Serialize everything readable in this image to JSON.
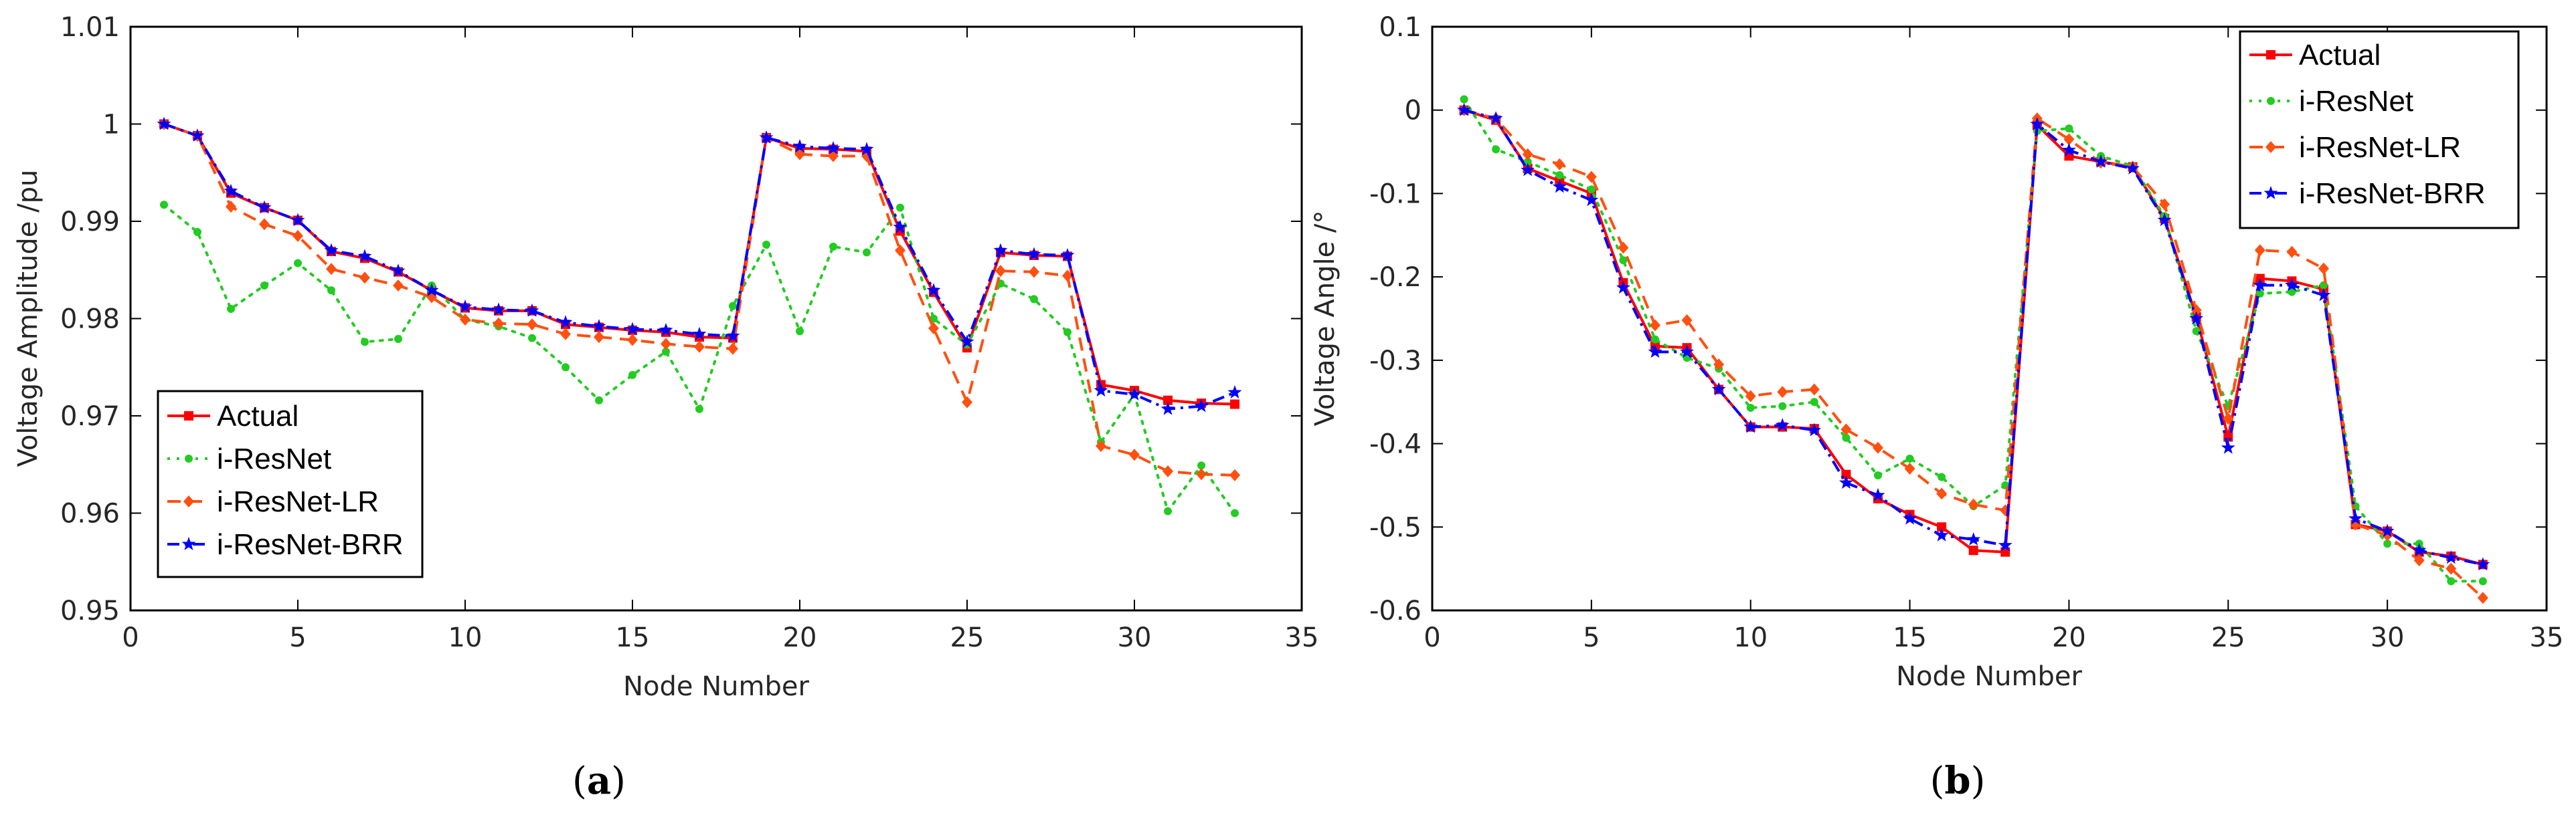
{
  "chart_data": [
    {
      "type": "line",
      "caption": {
        "open": "(",
        "letter": "a",
        "close": ")"
      },
      "title": "",
      "xlabel": "Node Number",
      "ylabel": "Voltage Amplitude /pu",
      "xlim": [
        0,
        35
      ],
      "ylim": [
        0.95,
        1.01
      ],
      "xticks": [
        0,
        5,
        10,
        15,
        20,
        25,
        30,
        35
      ],
      "yticks": [
        0.95,
        0.96,
        0.97,
        0.98,
        0.99,
        1,
        1.01
      ],
      "ytick_labels": [
        "0.95",
        "0.96",
        "0.97",
        "0.98",
        "0.99",
        "1",
        "1.01"
      ],
      "legend_position": "bottom-left",
      "x": [
        1,
        2,
        3,
        4,
        5,
        6,
        7,
        8,
        9,
        10,
        11,
        12,
        13,
        14,
        15,
        16,
        17,
        18,
        19,
        20,
        21,
        22,
        23,
        24,
        25,
        26,
        27,
        28,
        29,
        30,
        31,
        32,
        33
      ],
      "series": [
        {
          "name": "Actual",
          "color": "#ff0000",
          "dash": "",
          "marker": "square",
          "values": [
            1.0,
            0.9988,
            0.9929,
            0.9914,
            0.9901,
            0.9869,
            0.9862,
            0.9848,
            0.9829,
            0.9811,
            0.9808,
            0.9808,
            0.9794,
            0.9791,
            0.9788,
            0.9786,
            0.9781,
            0.978,
            0.9986,
            0.9975,
            0.9974,
            0.9972,
            0.989,
            0.9827,
            0.977,
            0.9868,
            0.9865,
            0.9864,
            0.9732,
            0.9726,
            0.9716,
            0.9713,
            0.9712
          ]
        },
        {
          "name": "i-ResNet",
          "color": "#22cc22",
          "dash": "4,10",
          "marker": "dot",
          "values": [
            0.9917,
            0.9889,
            0.981,
            0.9834,
            0.9857,
            0.9829,
            0.9776,
            0.9779,
            0.9834,
            0.9799,
            0.9792,
            0.978,
            0.975,
            0.9716,
            0.9742,
            0.9766,
            0.9707,
            0.9813,
            0.9876,
            0.9787,
            0.9874,
            0.9868,
            0.9914,
            0.98,
            0.9773,
            0.9836,
            0.982,
            0.9786,
            0.9673,
            0.9722,
            0.9602,
            0.9649,
            0.96
          ]
        },
        {
          "name": "i-ResNet-LR",
          "color": "#ff5010",
          "dash": "20,12",
          "marker": "diamond",
          "values": [
            1.0,
            0.9988,
            0.9915,
            0.9897,
            0.9885,
            0.9851,
            0.9842,
            0.9834,
            0.9822,
            0.9799,
            0.9795,
            0.9794,
            0.9784,
            0.9781,
            0.9778,
            0.9774,
            0.9771,
            0.9769,
            0.9986,
            0.9969,
            0.9967,
            0.9967,
            0.987,
            0.979,
            0.9714,
            0.9849,
            0.9848,
            0.9844,
            0.9669,
            0.966,
            0.9643,
            0.964,
            0.9639
          ]
        },
        {
          "name": "i-ResNet-BRR",
          "color": "#0000ff",
          "dash": "18,8,4,8",
          "marker": "star",
          "values": [
            1.0,
            0.9988,
            0.9931,
            0.9914,
            0.9901,
            0.987,
            0.9864,
            0.9849,
            0.9829,
            0.9812,
            0.9809,
            0.9808,
            0.9796,
            0.9792,
            0.9789,
            0.9788,
            0.9784,
            0.9782,
            0.9986,
            0.9977,
            0.9975,
            0.9974,
            0.9894,
            0.9829,
            0.9776,
            0.987,
            0.9866,
            0.9865,
            0.9726,
            0.9722,
            0.9707,
            0.971,
            0.9724
          ]
        }
      ]
    },
    {
      "type": "line",
      "caption": {
        "open": "(",
        "letter": "b",
        "close": ")"
      },
      "title": "",
      "xlabel": "Node Number",
      "ylabel": "Voltage Angle /°",
      "xlim": [
        0,
        35
      ],
      "ylim": [
        -0.6,
        0.1
      ],
      "xticks": [
        0,
        5,
        10,
        15,
        20,
        25,
        30,
        35
      ],
      "yticks": [
        -0.6,
        -0.5,
        -0.4,
        -0.3,
        -0.2,
        -0.1,
        0,
        0.1
      ],
      "ytick_labels": [
        "-0.6",
        "-0.5",
        "-0.4",
        "-0.3",
        "-0.2",
        "-0.1",
        "0",
        "0.1"
      ],
      "legend_position": "top-right",
      "x": [
        1,
        2,
        3,
        4,
        5,
        6,
        7,
        8,
        9,
        10,
        11,
        12,
        13,
        14,
        15,
        16,
        17,
        18,
        19,
        20,
        21,
        22,
        23,
        24,
        25,
        26,
        27,
        28,
        29,
        30,
        31,
        32,
        33
      ],
      "series": [
        {
          "name": "Actual",
          "color": "#ff0000",
          "dash": "",
          "marker": "square",
          "values": [
            0.0,
            -0.012,
            -0.07,
            -0.085,
            -0.1,
            -0.207,
            -0.283,
            -0.285,
            -0.335,
            -0.38,
            -0.38,
            -0.382,
            -0.437,
            -0.466,
            -0.485,
            -0.5,
            -0.528,
            -0.53,
            -0.018,
            -0.055,
            -0.062,
            -0.068,
            -0.13,
            -0.248,
            -0.392,
            -0.202,
            -0.205,
            -0.215,
            -0.497,
            -0.505,
            -0.53,
            -0.535,
            -0.545
          ]
        },
        {
          "name": "i-ResNet",
          "color": "#22cc22",
          "dash": "4,10",
          "marker": "dot",
          "values": [
            0.013,
            -0.047,
            -0.062,
            -0.078,
            -0.095,
            -0.18,
            -0.275,
            -0.297,
            -0.31,
            -0.357,
            -0.355,
            -0.35,
            -0.393,
            -0.438,
            -0.418,
            -0.44,
            -0.475,
            -0.45,
            -0.025,
            -0.022,
            -0.055,
            -0.067,
            -0.127,
            -0.265,
            -0.355,
            -0.22,
            -0.218,
            -0.21,
            -0.475,
            -0.52,
            -0.52,
            -0.565,
            -0.565
          ]
        },
        {
          "name": "i-ResNet-LR",
          "color": "#ff5010",
          "dash": "20,12",
          "marker": "diamond",
          "values": [
            0.0,
            -0.01,
            -0.053,
            -0.065,
            -0.08,
            -0.165,
            -0.258,
            -0.252,
            -0.305,
            -0.343,
            -0.338,
            -0.335,
            -0.383,
            -0.405,
            -0.43,
            -0.46,
            -0.473,
            -0.48,
            -0.01,
            -0.035,
            -0.063,
            -0.068,
            -0.113,
            -0.24,
            -0.37,
            -0.168,
            -0.17,
            -0.19,
            -0.497,
            -0.51,
            -0.54,
            -0.55,
            -0.585
          ]
        },
        {
          "name": "i-ResNet-BRR",
          "color": "#0000ff",
          "dash": "18,8,4,8",
          "marker": "star",
          "values": [
            0.0,
            -0.01,
            -0.072,
            -0.092,
            -0.108,
            -0.213,
            -0.29,
            -0.29,
            -0.335,
            -0.38,
            -0.378,
            -0.384,
            -0.447,
            -0.462,
            -0.49,
            -0.51,
            -0.515,
            -0.522,
            -0.017,
            -0.048,
            -0.062,
            -0.07,
            -0.132,
            -0.25,
            -0.405,
            -0.21,
            -0.21,
            -0.222,
            -0.49,
            -0.505,
            -0.528,
            -0.537,
            -0.545
          ]
        }
      ]
    }
  ]
}
